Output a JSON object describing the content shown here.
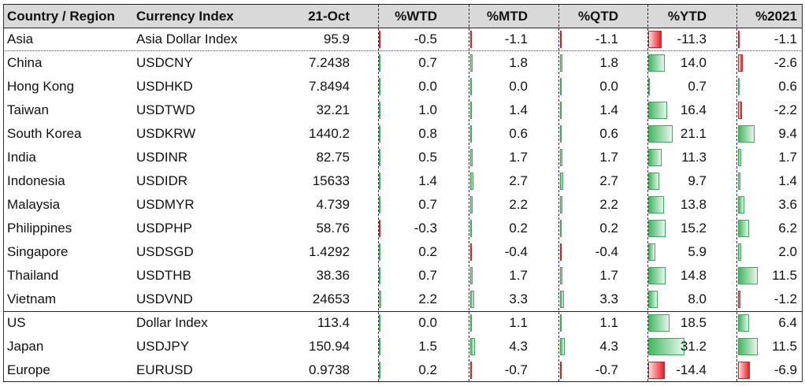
{
  "headers": {
    "country": "Country / Region",
    "currency": "Currency Index",
    "date": "21-Oct",
    "wtd": "%WTD",
    "mtd": "%MTD",
    "qtd": "%QTD",
    "ytd": "%YTD",
    "y2021": "%2021"
  },
  "colors": {
    "positive_bar": "#3cb55e",
    "negative_bar": "#ee1c24",
    "header_bg": "#d9d9d9"
  },
  "rows": [
    {
      "country": "Asia",
      "currency": "Asia Dollar Index",
      "value": "95.9",
      "wtd": "-0.5",
      "mtd": "-1.1",
      "qtd": "-1.1",
      "ytd": "-11.3",
      "y2021": "-1.1"
    },
    {
      "country": "China",
      "currency": "USDCNY",
      "value": "7.2438",
      "wtd": "0.7",
      "mtd": "1.8",
      "qtd": "1.8",
      "ytd": "14.0",
      "y2021": "-2.6"
    },
    {
      "country": "Hong Kong",
      "currency": "USDHKD",
      "value": "7.8494",
      "wtd": "0.0",
      "mtd": "0.0",
      "qtd": "0.0",
      "ytd": "0.7",
      "y2021": "0.6"
    },
    {
      "country": "Taiwan",
      "currency": "USDTWD",
      "value": "32.21",
      "wtd": "1.0",
      "mtd": "1.4",
      "qtd": "1.4",
      "ytd": "16.4",
      "y2021": "-2.2"
    },
    {
      "country": "South Korea",
      "currency": "USDKRW",
      "value": "1440.2",
      "wtd": "0.8",
      "mtd": "0.6",
      "qtd": "0.6",
      "ytd": "21.1",
      "y2021": "9.4"
    },
    {
      "country": "India",
      "currency": "USDINR",
      "value": "82.75",
      "wtd": "0.5",
      "mtd": "1.7",
      "qtd": "1.7",
      "ytd": "11.3",
      "y2021": "1.7"
    },
    {
      "country": "Indonesia",
      "currency": "USDIDR",
      "value": "15633",
      "wtd": "1.4",
      "mtd": "2.7",
      "qtd": "2.7",
      "ytd": "9.7",
      "y2021": "1.4"
    },
    {
      "country": "Malaysia",
      "currency": "USDMYR",
      "value": "4.739",
      "wtd": "0.7",
      "mtd": "2.2",
      "qtd": "2.2",
      "ytd": "13.8",
      "y2021": "3.6"
    },
    {
      "country": "Philippines",
      "currency": "USDPHP",
      "value": "58.76",
      "wtd": "-0.3",
      "mtd": "0.2",
      "qtd": "0.2",
      "ytd": "15.2",
      "y2021": "6.2"
    },
    {
      "country": "Singapore",
      "currency": "USDSGD",
      "value": "1.4292",
      "wtd": "0.2",
      "mtd": "-0.4",
      "qtd": "-0.4",
      "ytd": "5.9",
      "y2021": "2.0"
    },
    {
      "country": "Thailand",
      "currency": "USDTHB",
      "value": "38.36",
      "wtd": "0.7",
      "mtd": "1.7",
      "qtd": "1.7",
      "ytd": "14.8",
      "y2021": "11.5"
    },
    {
      "country": "Vietnam",
      "currency": "USDVND",
      "value": "24653",
      "wtd": "2.2",
      "mtd": "3.3",
      "qtd": "3.3",
      "ytd": "8.0",
      "y2021": "-1.2"
    },
    {
      "country": "US",
      "currency": "Dollar Index",
      "value": "113.4",
      "wtd": "0.0",
      "mtd": "1.1",
      "qtd": "1.1",
      "ytd": "18.5",
      "y2021": "6.4"
    },
    {
      "country": "Japan",
      "currency": "USDJPY",
      "value": "150.94",
      "wtd": "1.5",
      "mtd": "4.3",
      "qtd": "4.3",
      "ytd": "31.2",
      "y2021": "11.5"
    },
    {
      "country": "Europe",
      "currency": "EURUSD",
      "value": "0.9738",
      "wtd": "0.2",
      "mtd": "-0.7",
      "qtd": "-0.7",
      "ytd": "-14.4",
      "y2021": "-6.9"
    }
  ]
}
